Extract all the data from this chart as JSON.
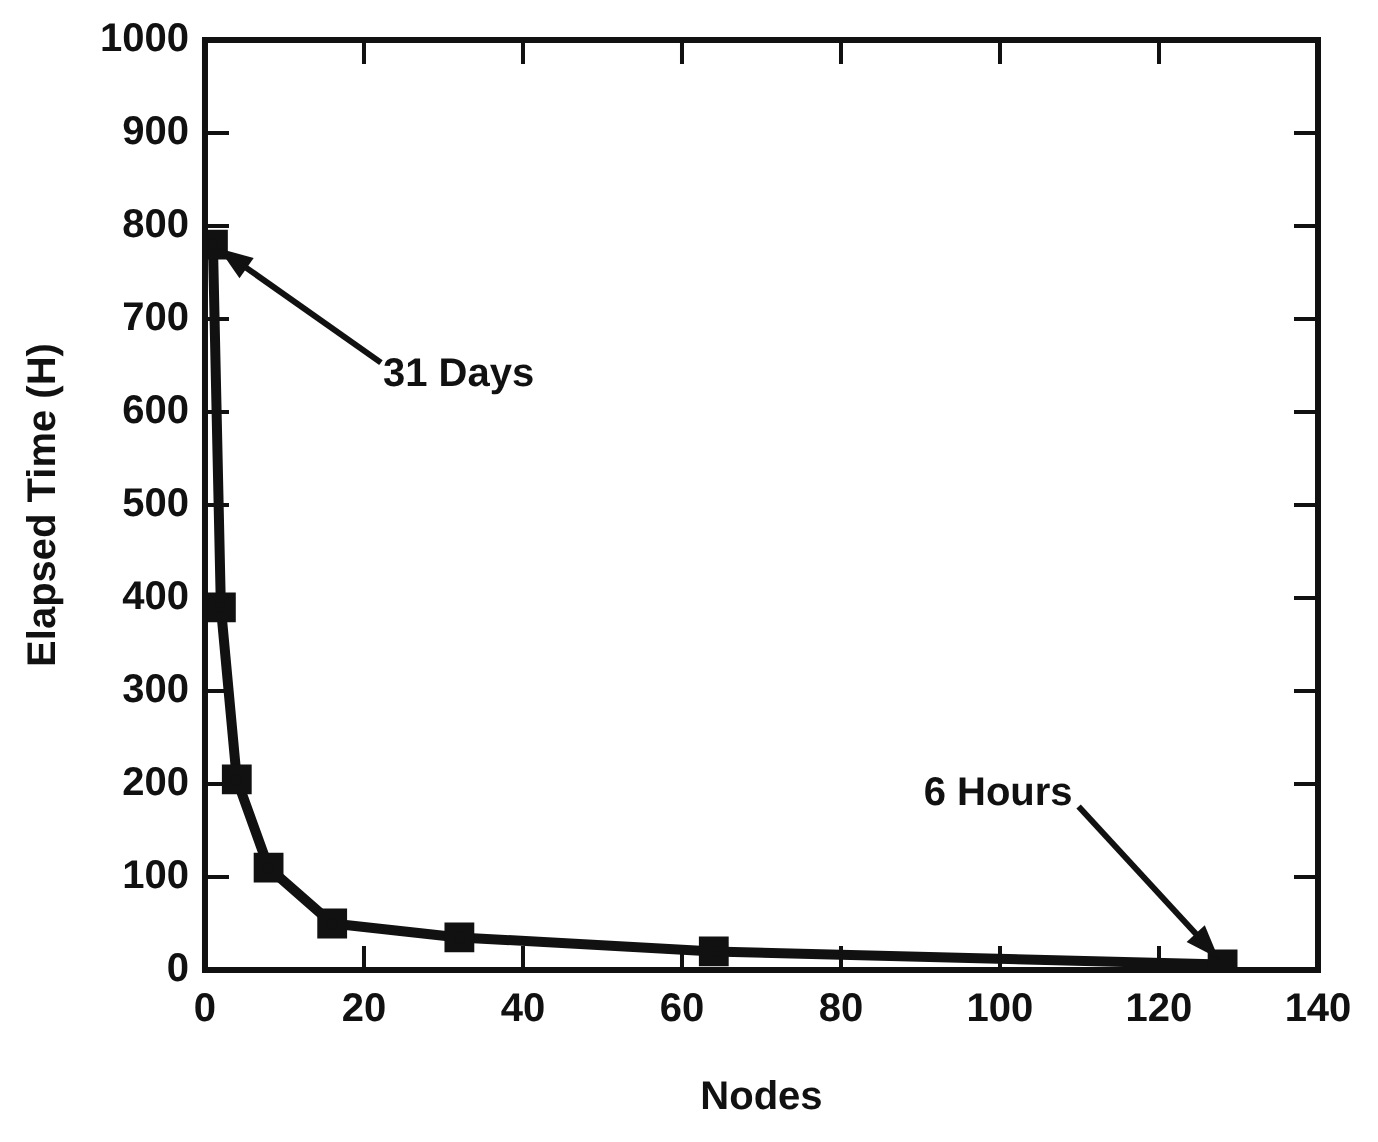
{
  "chart_data": {
    "type": "line",
    "xlabel": "Nodes",
    "ylabel": "Elapsed Time (H)",
    "x": [
      1,
      2,
      4,
      8,
      16,
      32,
      64,
      128
    ],
    "series": [
      {
        "color": "#111111",
        "values": [
          780,
          390,
          205,
          110,
          50,
          35,
          20,
          6
        ]
      }
    ],
    "xlim": [
      0,
      140
    ],
    "xticks": [
      0,
      20,
      40,
      60,
      80,
      100,
      120,
      140
    ],
    "ylim": [
      0,
      1000
    ],
    "yticks": [
      0,
      100,
      200,
      300,
      400,
      500,
      600,
      700,
      800,
      900,
      1000
    ],
    "grid": false,
    "legend": false,
    "marker": "square",
    "line_style": "solid",
    "annotations": [
      "31 Days",
      "6 Hours"
    ]
  }
}
